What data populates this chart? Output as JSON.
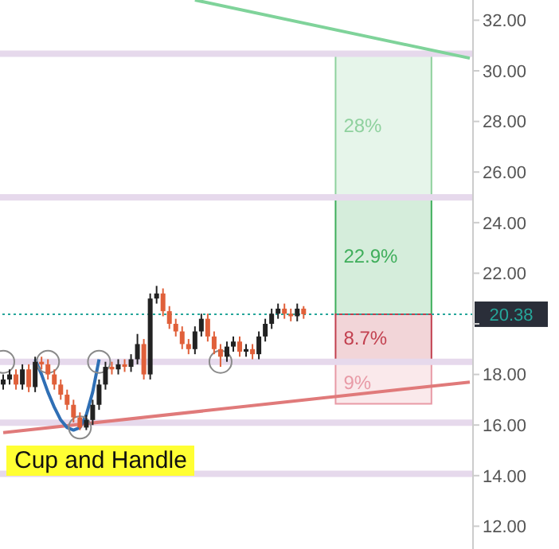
{
  "chart_data": {
    "type": "candlestick",
    "categories": [
      null,
      null,
      null,
      null,
      null,
      null,
      null,
      null,
      null,
      null,
      null,
      null,
      null,
      null,
      null,
      null,
      null,
      null,
      null,
      null,
      null,
      null,
      null,
      null,
      null,
      null,
      null,
      null,
      null,
      null,
      null,
      null,
      null,
      null,
      null,
      null,
      null,
      null,
      null,
      null,
      null,
      null,
      null,
      null,
      null,
      null,
      null,
      null,
      null,
      null,
      null,
      null,
      null,
      null,
      null,
      null,
      null,
      null,
      null,
      null,
      null,
      null,
      null,
      null,
      null,
      null,
      null,
      null,
      null,
      null,
      null,
      null,
      null,
      null
    ],
    "ohlc": [
      [
        17.6,
        18.0,
        17.4,
        17.8
      ],
      [
        17.8,
        18.2,
        17.6,
        18.0
      ],
      [
        18.0,
        18.2,
        17.4,
        17.6
      ],
      [
        17.6,
        18.4,
        17.4,
        18.2
      ],
      [
        18.2,
        18.4,
        17.3,
        17.5
      ],
      [
        17.5,
        18.7,
        17.3,
        18.5
      ],
      [
        18.5,
        18.7,
        18.2,
        18.4
      ],
      [
        18.4,
        18.6,
        17.8,
        18.0
      ],
      [
        18.0,
        18.2,
        17.4,
        17.6
      ],
      [
        17.6,
        17.8,
        17.0,
        17.2
      ],
      [
        17.2,
        17.4,
        16.6,
        16.8
      ],
      [
        16.8,
        17.0,
        16.1,
        16.3
      ],
      [
        16.3,
        16.5,
        15.8,
        15.9
      ],
      [
        15.9,
        16.4,
        15.8,
        16.2
      ],
      [
        16.2,
        17.0,
        16.0,
        16.8
      ],
      [
        16.8,
        17.8,
        16.6,
        17.6
      ],
      [
        17.6,
        18.5,
        17.4,
        18.3
      ],
      [
        18.3,
        18.5,
        18.0,
        18.2
      ],
      [
        18.2,
        18.6,
        18.0,
        18.4
      ],
      [
        18.4,
        18.6,
        18.1,
        18.3
      ],
      [
        18.3,
        18.8,
        18.1,
        18.6
      ],
      [
        18.6,
        19.6,
        18.4,
        19.2
      ],
      [
        19.2,
        19.4,
        17.8,
        18.0
      ],
      [
        18.0,
        21.2,
        17.8,
        21.0
      ],
      [
        21.0,
        21.5,
        20.8,
        21.2
      ],
      [
        21.2,
        21.4,
        20.3,
        20.5
      ],
      [
        20.5,
        20.7,
        19.8,
        20.0
      ],
      [
        20.0,
        20.2,
        19.5,
        19.7
      ],
      [
        19.7,
        19.9,
        19.0,
        19.2
      ],
      [
        19.2,
        19.4,
        18.8,
        19.0
      ],
      [
        19.0,
        19.9,
        18.8,
        19.7
      ],
      [
        19.7,
        20.4,
        19.5,
        20.2
      ],
      [
        20.2,
        20.4,
        19.3,
        19.5
      ],
      [
        19.5,
        19.7,
        18.8,
        19.0
      ],
      [
        19.0,
        19.2,
        18.3,
        18.7
      ],
      [
        18.7,
        19.3,
        18.5,
        19.1
      ],
      [
        19.1,
        19.5,
        18.9,
        19.3
      ],
      [
        19.3,
        19.5,
        18.7,
        18.9
      ],
      [
        18.9,
        19.2,
        18.7,
        19.0
      ],
      [
        19.0,
        19.2,
        18.6,
        18.8
      ],
      [
        18.8,
        19.7,
        18.6,
        19.5
      ],
      [
        19.5,
        20.2,
        19.3,
        20.0
      ],
      [
        20.0,
        20.6,
        19.8,
        20.4
      ],
      [
        20.4,
        20.8,
        20.2,
        20.6
      ],
      [
        20.6,
        20.8,
        20.2,
        20.4
      ],
      [
        20.4,
        20.6,
        20.1,
        20.3
      ],
      [
        20.3,
        20.8,
        20.1,
        20.6
      ],
      [
        20.6,
        20.7,
        20.2,
        20.38
      ],
      null,
      null,
      null,
      null,
      null,
      null,
      null,
      null,
      null,
      null,
      null,
      null,
      null,
      null,
      null,
      null,
      null,
      null,
      null,
      null,
      null,
      null,
      null,
      null,
      null,
      null
    ],
    "colors": [
      "#222222",
      "#222222",
      "#e0603a",
      "#222222",
      "#e0603a",
      "#222222",
      "#e0603a",
      "#e0603a",
      "#e0603a",
      "#e0603a",
      "#e0603a",
      "#e0603a",
      "#e0603a",
      "#222222",
      "#222222",
      "#222222",
      "#222222",
      "#e0603a",
      "#222222",
      "#e0603a",
      "#222222",
      "#222222",
      "#e0603a",
      "#222222",
      "#222222",
      "#e0603a",
      "#e0603a",
      "#e0603a",
      "#e0603a",
      "#e0603a",
      "#222222",
      "#222222",
      "#e0603a",
      "#e0603a",
      "#e0603a",
      "#222222",
      "#222222",
      "#e0603a",
      "#222222",
      "#e0603a",
      "#222222",
      "#222222",
      "#222222",
      "#222222",
      "#e0603a",
      "#e0603a",
      "#222222",
      "#e0603a",
      null,
      null,
      null,
      null,
      null,
      null,
      null,
      null,
      null,
      null,
      null,
      null,
      null,
      null,
      null,
      null,
      null,
      null,
      null,
      null,
      null,
      null,
      null,
      null,
      null,
      null
    ],
    "ylim": [
      11.1,
      32.8
    ],
    "yticks": [
      {
        "value": 12,
        "label": "12.00"
      },
      {
        "value": 14,
        "label": "14.00"
      },
      {
        "value": 16,
        "label": "16.00"
      },
      {
        "value": 18,
        "label": "18.00"
      },
      {
        "value": 20,
        "label": null
      },
      {
        "value": 22,
        "label": "22.00"
      },
      {
        "value": 24,
        "label": "24.00"
      },
      {
        "value": 26,
        "label": "26.00"
      },
      {
        "value": 28,
        "label": "28.00"
      },
      {
        "value": 30,
        "label": "30.00"
      },
      {
        "value": 32,
        "label": "32.00"
      }
    ],
    "tick_labels": "y",
    "series": [
      {
        "type": "line",
        "color": "#7fd39a",
        "values": [
          null,
          null,
          null,
          null,
          null,
          null,
          null,
          null,
          null,
          null,
          null,
          null,
          null,
          null,
          null,
          null,
          null,
          null,
          null,
          null,
          null,
          null,
          null,
          null,
          null,
          null,
          null,
          null,
          null,
          null,
          32.8,
          null,
          null,
          null,
          null,
          null,
          null,
          null,
          null,
          null,
          null,
          null,
          null,
          null,
          null,
          null,
          null,
          null,
          null,
          null,
          null,
          null,
          null,
          null,
          null,
          null,
          null,
          null,
          null,
          null,
          null,
          null,
          null,
          null,
          null,
          null,
          null,
          null,
          null,
          null,
          null,
          null,
          null,
          30.5
        ]
      },
      {
        "type": "line",
        "color": "#e07a7a",
        "values": [
          15.7,
          null,
          null,
          null,
          null,
          null,
          null,
          null,
          null,
          null,
          null,
          null,
          null,
          null,
          null,
          null,
          null,
          null,
          null,
          null,
          null,
          null,
          null,
          null,
          null,
          null,
          null,
          null,
          null,
          null,
          null,
          null,
          null,
          null,
          null,
          null,
          null,
          null,
          null,
          null,
          null,
          null,
          null,
          null,
          null,
          null,
          null,
          null,
          null,
          null,
          null,
          null,
          null,
          null,
          null,
          null,
          null,
          null,
          null,
          null,
          null,
          null,
          null,
          null,
          null,
          null,
          null,
          null,
          null,
          null,
          null,
          null,
          null,
          17.7
        ]
      },
      {
        "type": "line",
        "color": "#2f6fb5",
        "values": [
          null,
          null,
          null,
          null,
          null,
          18.6,
          18.0,
          17.3,
          16.7,
          16.2,
          15.9,
          15.8,
          15.9,
          16.4,
          17.3,
          18.6,
          null,
          null,
          null,
          null,
          null,
          null,
          null,
          null,
          null,
          null,
          null,
          null,
          null,
          null,
          null,
          null,
          null,
          null,
          null,
          null,
          null,
          null,
          null,
          null,
          null,
          null,
          null,
          null,
          null,
          null,
          null,
          null,
          null,
          null,
          null,
          null,
          null,
          null,
          null,
          null,
          null,
          null,
          null,
          null,
          null,
          null,
          null,
          null,
          null,
          null,
          null,
          null,
          null,
          null,
          null,
          null,
          null,
          null
        ]
      },
      {
        "type": "scatter",
        "marker": "circle",
        "color": "#8a8a8a",
        "values": [
          18.5,
          null,
          null,
          null,
          null,
          null,
          null,
          18.5,
          null,
          null,
          null,
          null,
          15.9,
          null,
          null,
          18.5,
          null,
          null,
          null,
          null,
          null,
          null,
          null,
          null,
          null,
          null,
          null,
          null,
          null,
          null,
          null,
          null,
          null,
          null,
          18.5,
          null,
          null,
          null,
          null,
          null,
          null,
          null,
          null,
          null,
          null,
          null,
          null,
          null,
          null,
          null,
          null,
          null,
          null,
          null,
          null,
          null,
          null,
          null,
          null,
          null,
          null,
          null,
          null,
          null,
          null,
          null,
          null,
          null,
          null,
          null,
          null,
          null,
          null,
          null
        ]
      }
    ],
    "ref_lines": [
      {
        "axis": "y",
        "value": 30.68,
        "color": "#e6d9ec"
      },
      {
        "axis": "y",
        "value": 25.0,
        "color": "#e6d9ec"
      },
      {
        "axis": "y",
        "value": 18.5,
        "color": "#e6d9ec"
      },
      {
        "axis": "y",
        "value": 16.09,
        "color": "#e6d9ec"
      },
      {
        "axis": "y",
        "value": 14.07,
        "color": "#e6d9ec"
      },
      {
        "axis": "y",
        "value": 20.38,
        "label": "20.38",
        "color": "#26a69a",
        "line_style": "dotted"
      }
    ],
    "bands": [
      {
        "axis": "y",
        "from": 25.0,
        "to": 30.68,
        "label": "28%",
        "color": "#8fd19e"
      },
      {
        "axis": "y",
        "from": 20.38,
        "to": 25.0,
        "label": "22.9%",
        "color": "#3fae5b"
      },
      {
        "axis": "y",
        "from": 18.54,
        "to": 20.38,
        "label": "8.7%",
        "color": "#c2404f"
      },
      {
        "axis": "y",
        "from": 16.84,
        "to": 18.54,
        "label": "9%",
        "color": "#e89aa6"
      }
    ],
    "annotations": [
      "Cup and Handle"
    ]
  }
}
